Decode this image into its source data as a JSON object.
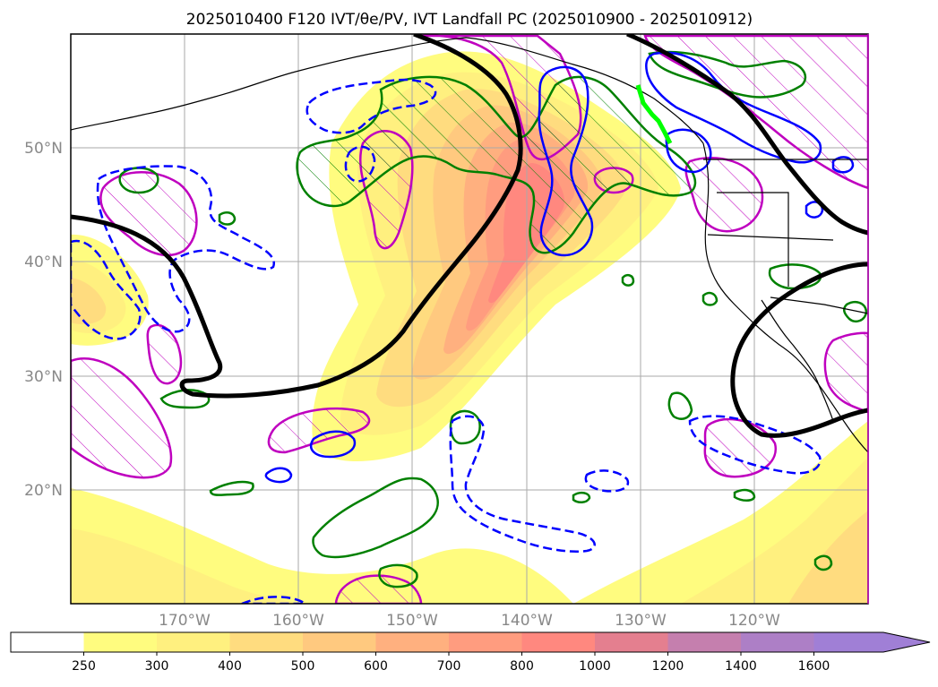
{
  "figure": {
    "title": "2025010400 F120 IVT/θe/PV, IVT Landfall PC (2025010900 - 2025010912)"
  },
  "map": {
    "extent": {
      "lon_min": -180,
      "lon_max": -110,
      "lat_min": 10,
      "lat_max": 60
    },
    "lat_ticks": [
      {
        "value": 20,
        "label": "20°N"
      },
      {
        "value": 30,
        "label": "30°N"
      },
      {
        "value": 40,
        "label": "40°N"
      },
      {
        "value": 50,
        "label": "50°N"
      }
    ],
    "lon_ticks": [
      {
        "value": -170,
        "label": "170°W"
      },
      {
        "value": -160,
        "label": "160°W"
      },
      {
        "value": -150,
        "label": "150°W"
      },
      {
        "value": -140,
        "label": "140°W"
      },
      {
        "value": -130,
        "label": "130°W"
      },
      {
        "value": -120,
        "label": "120°W"
      }
    ],
    "gridlines": true,
    "colors": {
      "pv_contour": "#000000",
      "theta_e_contour": "#008000",
      "negative_dashed_contour": "#0000ff",
      "hatched_contour": "#bf00bf",
      "landfall_segment": "#00ff00",
      "coastline": "#000000"
    }
  },
  "colorbar": {
    "levels": [
      "250",
      "300",
      "400",
      "500",
      "600",
      "700",
      "800",
      "1000",
      "1200",
      "1400",
      "1600"
    ],
    "colors": [
      "#ffffff",
      "#fffc7f",
      "#fff07f",
      "#ffdc7f",
      "#ffc97f",
      "#ffb07f",
      "#ff9c7f",
      "#ff887f",
      "#e47f8f",
      "#c57fae",
      "#ad7fc6",
      "#a07fd6"
    ],
    "extend": "max"
  }
}
